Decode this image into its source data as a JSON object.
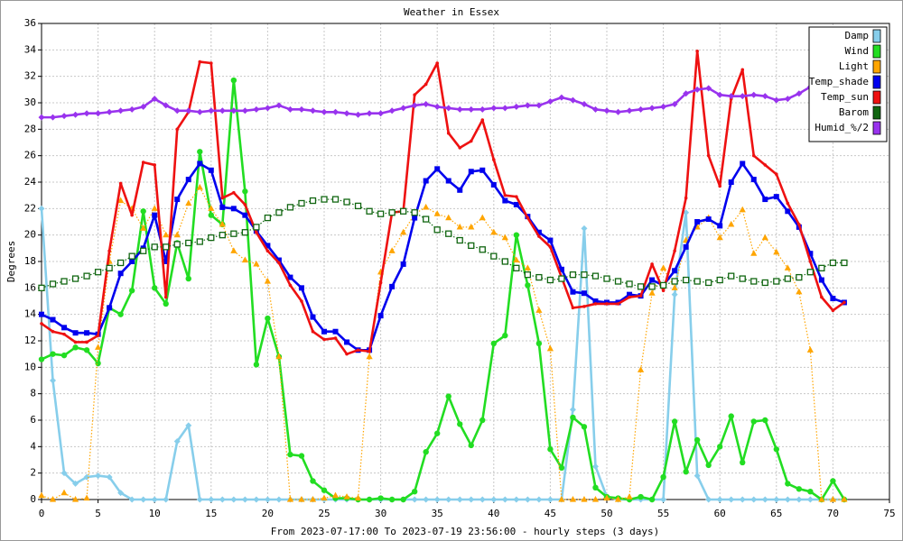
{
  "chart_data": {
    "type": "line",
    "title": "Weather in Essex",
    "x_label": "From 2023-07-17:00 To 2023-07-19 23:56:00 - hourly steps (3 days)",
    "y_label": "Degrees",
    "x": [
      0,
      1,
      2,
      3,
      4,
      5,
      6,
      7,
      8,
      9,
      10,
      11,
      12,
      13,
      14,
      15,
      16,
      17,
      18,
      19,
      20,
      21,
      22,
      23,
      24,
      25,
      26,
      27,
      28,
      29,
      30,
      31,
      32,
      33,
      34,
      35,
      36,
      37,
      38,
      39,
      40,
      41,
      42,
      43,
      44,
      45,
      46,
      47,
      48,
      49,
      50,
      51,
      52,
      53,
      54,
      55,
      56,
      57,
      58,
      59,
      60,
      61,
      62,
      63,
      64,
      65,
      66,
      67,
      68,
      69,
      70,
      71
    ],
    "xlim": [
      0,
      75
    ],
    "xticks": [
      0,
      5,
      10,
      15,
      20,
      25,
      30,
      35,
      40,
      45,
      50,
      55,
      60,
      65,
      70,
      75
    ],
    "ylim": [
      0,
      36
    ],
    "yticks": [
      0,
      2,
      4,
      6,
      8,
      10,
      12,
      14,
      16,
      18,
      20,
      22,
      24,
      26,
      28,
      30,
      32,
      34,
      36
    ],
    "grid": true,
    "legend": "top-right",
    "series": [
      {
        "name": "Damp",
        "color": "#87ceeb",
        "marker": "diamond",
        "style": "solid",
        "values": [
          22,
          9,
          2,
          1.2,
          1.7,
          1.8,
          1.7,
          0.5,
          0,
          0,
          0,
          0,
          4.4,
          5.6,
          0,
          0,
          0,
          0,
          0,
          0,
          0,
          0,
          0,
          0,
          0,
          0,
          0,
          0,
          0,
          0,
          0,
          0,
          0,
          0,
          0,
          0,
          0,
          0,
          0,
          0,
          0,
          0,
          0,
          0,
          0,
          0,
          0,
          6.8,
          20.5,
          2.5,
          0.2,
          0,
          0,
          0,
          0,
          0,
          15.5,
          21.7,
          1.8,
          0,
          0,
          0,
          0,
          0,
          0,
          0,
          0,
          0,
          0,
          0,
          0,
          0
        ]
      },
      {
        "name": "Wind",
        "color": "#22dd22",
        "marker": "circle",
        "style": "solid",
        "values": [
          10.6,
          11,
          10.9,
          11.5,
          11.3,
          10.3,
          14.5,
          14,
          15.8,
          21.8,
          16,
          14.8,
          19.4,
          16.7,
          26.3,
          21.5,
          20.8,
          31.7,
          23.3,
          10.2,
          13.7,
          10.8,
          3.4,
          3.3,
          1.4,
          0.7,
          0.1,
          0.1,
          0,
          0,
          0.1,
          0,
          0,
          0.6,
          3.6,
          5,
          7.8,
          5.7,
          4.1,
          6,
          11.8,
          12.4,
          20,
          16.2,
          11.8,
          3.8,
          2.4,
          6.2,
          5.5,
          0.9,
          0.2,
          0.1,
          0,
          0.2,
          0,
          1.7,
          5.9,
          2.1,
          4.5,
          2.6,
          4,
          6.3,
          2.8,
          5.9,
          6,
          3.8,
          1.2,
          0.8,
          0.6,
          0,
          1.4,
          0
        ]
      },
      {
        "name": "Light",
        "color": "#ffa500",
        "marker": "triangle",
        "style": "dotted",
        "values": [
          0.3,
          0,
          0.5,
          0,
          0.1,
          11.5,
          18,
          22.6,
          22,
          20.5,
          22,
          20,
          20,
          22.4,
          23.6,
          22,
          20.8,
          18.8,
          18.1,
          17.8,
          16.5,
          10.8,
          0,
          0,
          0,
          0.1,
          0.3,
          0.2,
          0.1,
          10.8,
          17.2,
          18.8,
          20.2,
          21.6,
          22.1,
          21.6,
          21.3,
          20.6,
          20.6,
          21.3,
          20.2,
          19.8,
          18.1,
          17.5,
          14.3,
          11.4,
          0,
          0,
          0,
          0,
          0.1,
          0,
          0.2,
          9.8,
          15.6,
          17.5,
          16,
          19.6,
          20.6,
          21.3,
          19.8,
          20.8,
          21.9,
          18.6,
          19.8,
          18.7,
          17.5,
          15.7,
          11.3,
          0,
          0,
          0
        ]
      },
      {
        "name": "Temp_shade",
        "color": "#0000ee",
        "marker": "square",
        "style": "solid",
        "values": [
          14,
          13.6,
          13,
          12.6,
          12.6,
          12.5,
          14.5,
          17.1,
          18,
          19,
          21.5,
          18,
          22.7,
          24.2,
          25.4,
          24.9,
          22.1,
          22,
          21.5,
          20.3,
          19.2,
          18.1,
          16.8,
          16,
          13.8,
          12.7,
          12.7,
          11.9,
          11.3,
          11.3,
          13.9,
          16.1,
          17.8,
          21.3,
          24.1,
          25,
          24.1,
          23.4,
          24.8,
          24.9,
          23.8,
          22.6,
          22.3,
          21.4,
          20.2,
          19.6,
          17.4,
          15.7,
          15.6,
          15,
          14.9,
          14.9,
          15.5,
          15.4,
          16.6,
          16.2,
          17.3,
          19.1,
          21,
          21.2,
          20.7,
          24,
          25.4,
          24.2,
          22.7,
          22.9,
          21.8,
          20.6,
          18.6,
          16.6,
          15.2,
          14.9
        ]
      },
      {
        "name": "Temp_sun",
        "color": "#ee1111",
        "marker": "small",
        "style": "solid",
        "values": [
          13.3,
          12.7,
          12.5,
          11.9,
          11.9,
          12.4,
          18.8,
          23.9,
          21.5,
          25.5,
          25.3,
          15.3,
          28,
          29.3,
          33.1,
          33,
          22.8,
          23.2,
          22.3,
          20.2,
          18.8,
          17.9,
          16.2,
          15,
          12.7,
          12.1,
          12.2,
          11,
          11.3,
          11.2,
          16.4,
          21.7,
          21.8,
          30.6,
          31.4,
          33,
          27.7,
          26.6,
          27.1,
          28.7,
          25.7,
          23,
          22.9,
          21.3,
          19.9,
          19.1,
          16.8,
          14.5,
          14.6,
          14.8,
          14.8,
          14.8,
          15.3,
          15.4,
          17.8,
          15.8,
          18.8,
          22.8,
          33.9,
          26,
          23.7,
          30.3,
          32.5,
          26,
          25.3,
          24.6,
          22.4,
          20.8,
          18,
          15.3,
          14.3,
          14.9
        ]
      },
      {
        "name": "Barom",
        "color": "#116611",
        "marker": "hollow-square",
        "style": "dotted",
        "values": [
          16,
          16.3,
          16.5,
          16.7,
          16.9,
          17.2,
          17.5,
          17.9,
          18.4,
          18.8,
          19.1,
          19.1,
          19.3,
          19.4,
          19.5,
          19.8,
          20,
          20.1,
          20.2,
          20.6,
          21.3,
          21.7,
          22.1,
          22.4,
          22.6,
          22.7,
          22.7,
          22.5,
          22.2,
          21.8,
          21.6,
          21.7,
          21.8,
          21.7,
          21.2,
          20.4,
          20.1,
          19.6,
          19.2,
          18.9,
          18.4,
          18,
          17.5,
          17,
          16.8,
          16.6,
          16.7,
          17,
          17,
          16.9,
          16.7,
          16.5,
          16.3,
          16.1,
          16.1,
          16.2,
          16.5,
          16.6,
          16.5,
          16.4,
          16.6,
          16.9,
          16.7,
          16.5,
          16.4,
          16.5,
          16.7,
          16.8,
          17.2,
          17.5,
          17.9,
          17.9
        ]
      },
      {
        "name": "Humid_%/2",
        "color": "#9933ee",
        "marker": "diamond",
        "style": "solid",
        "values": [
          28.9,
          28.9,
          29,
          29.1,
          29.2,
          29.2,
          29.3,
          29.4,
          29.5,
          29.7,
          30.3,
          29.8,
          29.4,
          29.4,
          29.3,
          29.4,
          29.4,
          29.4,
          29.4,
          29.5,
          29.6,
          29.8,
          29.5,
          29.5,
          29.4,
          29.3,
          29.3,
          29.2,
          29.1,
          29.2,
          29.2,
          29.4,
          29.6,
          29.8,
          29.9,
          29.7,
          29.6,
          29.5,
          29.5,
          29.5,
          29.6,
          29.6,
          29.7,
          29.8,
          29.8,
          30.1,
          30.4,
          30.2,
          29.9,
          29.5,
          29.4,
          29.3,
          29.4,
          29.5,
          29.6,
          29.7,
          29.9,
          30.7,
          31,
          31.1,
          30.6,
          30.5,
          30.5,
          30.6,
          30.5,
          30.2,
          30.3,
          30.7,
          31.2,
          31,
          null,
          null
        ]
      }
    ]
  }
}
